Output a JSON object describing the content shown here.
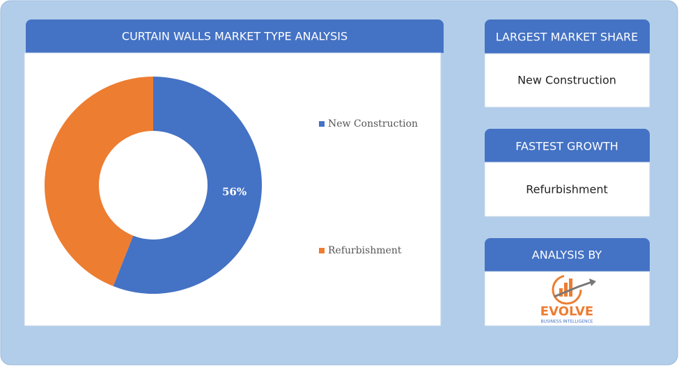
{
  "chart_data": {
    "type": "donut",
    "title": "CURTAIN WALLS MARKET TYPE ANALYSIS",
    "categories": [
      "New Construction",
      "Refurbishment"
    ],
    "values": [
      56,
      44
    ],
    "value_labels": [
      "56%",
      null
    ],
    "colors": [
      "#4472c4",
      "#ed7d31"
    ],
    "legend": "right"
  },
  "panels": [
    {
      "title": "LARGEST MARKET SHARE",
      "text": "New Construction"
    },
    {
      "title": "FASTEST GROWTH",
      "text": "Refurbishment"
    },
    {
      "title": "ANALYSIS BY"
    }
  ],
  "logo": {
    "name": "EVOLVE",
    "tagline": "BUSINESS INTELLIGENCE"
  }
}
